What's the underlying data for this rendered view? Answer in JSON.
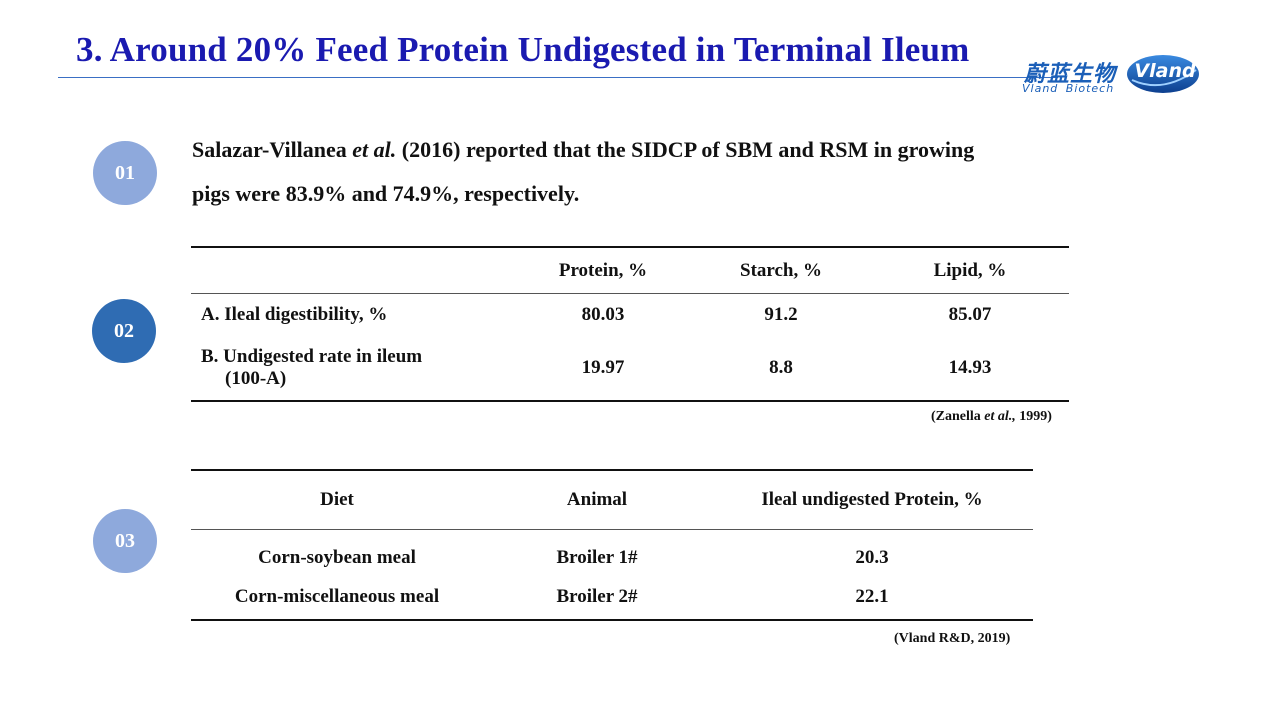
{
  "title": "3. Around 20% Feed Protein Undigested in Terminal Ileum",
  "logo": {
    "cn": "蔚蓝生物",
    "en": "Vland Biotech",
    "mark": "Vland",
    "colors": {
      "blue": "#1b5fb8",
      "dark": "#0d3f8f",
      "light": "#3a8ae0"
    }
  },
  "badges": [
    {
      "label": "01",
      "color": "#8ea9dc"
    },
    {
      "label": "02",
      "color": "#2f6cb3"
    },
    {
      "label": "03",
      "color": "#8ea9dc"
    }
  ],
  "paragraph": {
    "author": "Salazar-Villanea ",
    "etal": "et al.",
    "rest_line1": " (2016) reported that the SIDCP of SBM and RSM in growing",
    "line2": "pigs were 83.9% and 74.9%,  respectively."
  },
  "table1": {
    "headers": [
      "",
      "Protein, %",
      "Starch, %",
      "Lipid, %"
    ],
    "row_a": {
      "label": "A. Ileal digestibility, %",
      "values": [
        "80.03",
        "91.2",
        "85.07"
      ]
    },
    "row_b": {
      "label_line1": "B. Undigested rate in ileum",
      "label_line2": "(100-A)",
      "values": [
        "19.97",
        "8.8",
        "14.93"
      ]
    },
    "source_pre": "(Zanella ",
    "source_etal": "et al.,",
    "source_post": " 1999)"
  },
  "table2": {
    "headers": [
      "Diet",
      "Animal",
      "Ileal undigested Protein, %"
    ],
    "rows": [
      [
        "Corn-soybean meal",
        "Broiler 1#",
        "20.3"
      ],
      [
        "Corn-miscellaneous  meal",
        "Broiler 2#",
        "22.1"
      ]
    ],
    "source": "(Vland R&D, 2019)"
  },
  "colors": {
    "title": "#1a1ab0",
    "rule": "#3a6fc4"
  }
}
